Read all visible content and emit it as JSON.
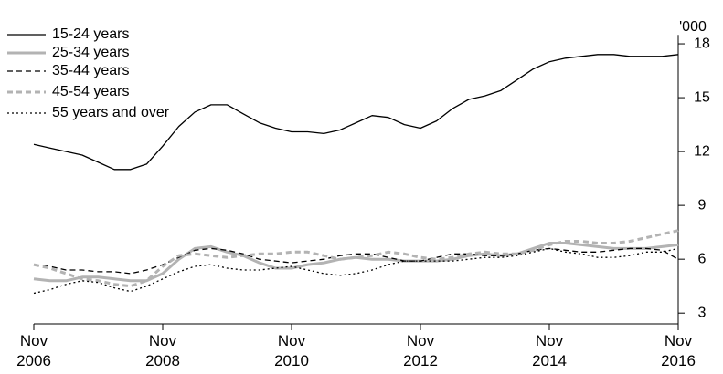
{
  "chart_data": {
    "type": "line",
    "ylabel": "'000",
    "categories": [
      "Nov 2006",
      null,
      null,
      null,
      null,
      null,
      null,
      null,
      "Nov 2008",
      null,
      null,
      null,
      null,
      null,
      null,
      null,
      "Nov 2010",
      null,
      null,
      null,
      null,
      null,
      null,
      null,
      "Nov 2012",
      null,
      null,
      null,
      null,
      null,
      null,
      null,
      "Nov 2014",
      null,
      null,
      null,
      null,
      null,
      null,
      null,
      "Nov 2016"
    ],
    "ylim": [
      2.4,
      18.5
    ],
    "yticks": [
      3,
      6,
      9,
      12,
      15,
      18
    ],
    "series": [
      {
        "name": "15-24 years",
        "color": "#000000",
        "dash": "solid",
        "width": 1.3,
        "values": [
          12.4,
          12.2,
          12.0,
          11.8,
          11.4,
          11.0,
          11.0,
          11.3,
          12.3,
          13.4,
          14.2,
          14.6,
          14.6,
          14.1,
          13.6,
          13.3,
          13.1,
          13.1,
          13.0,
          13.2,
          13.6,
          14.0,
          13.9,
          13.5,
          13.3,
          13.7,
          14.4,
          14.9,
          15.1,
          15.4,
          16.0,
          16.6,
          17.0,
          17.2,
          17.3,
          17.4,
          17.4,
          17.3,
          17.3,
          17.3,
          17.4
        ]
      },
      {
        "name": "25-34 years",
        "color": "#b3b3b3",
        "dash": "solid",
        "width": 3,
        "values": [
          4.9,
          4.8,
          4.8,
          5.0,
          5.0,
          4.9,
          4.8,
          4.8,
          5.2,
          6.0,
          6.6,
          6.7,
          6.4,
          6.2,
          5.8,
          5.5,
          5.5,
          5.7,
          5.8,
          6.0,
          6.1,
          6.0,
          6.0,
          5.9,
          5.9,
          5.9,
          6.0,
          6.2,
          6.3,
          6.2,
          6.3,
          6.6,
          6.9,
          6.9,
          6.8,
          6.7,
          6.6,
          6.6,
          6.6,
          6.7,
          6.8
        ]
      },
      {
        "name": "35-44 years",
        "color": "#000000",
        "dash": "dashed",
        "width": 1.3,
        "values": [
          5.7,
          5.6,
          5.4,
          5.4,
          5.3,
          5.3,
          5.2,
          5.4,
          5.7,
          6.1,
          6.5,
          6.6,
          6.5,
          6.3,
          6.0,
          5.9,
          5.8,
          5.9,
          6.0,
          6.2,
          6.3,
          6.3,
          6.1,
          5.9,
          5.9,
          6.1,
          6.3,
          6.3,
          6.2,
          6.2,
          6.3,
          6.5,
          6.6,
          6.5,
          6.4,
          6.4,
          6.5,
          6.6,
          6.6,
          6.5,
          6.0
        ]
      },
      {
        "name": "45-54 years",
        "color": "#b3b3b3",
        "dash": "dashed",
        "width": 3,
        "values": [
          5.7,
          5.5,
          5.2,
          4.9,
          4.8,
          4.6,
          4.5,
          4.8,
          5.6,
          6.2,
          6.3,
          6.2,
          6.1,
          6.2,
          6.3,
          6.3,
          6.4,
          6.4,
          6.2,
          6.0,
          6.1,
          6.2,
          6.4,
          6.3,
          6.1,
          6.0,
          6.1,
          6.3,
          6.4,
          6.3,
          6.3,
          6.5,
          6.8,
          7.0,
          7.0,
          6.9,
          6.9,
          7.0,
          7.2,
          7.4,
          7.6
        ]
      },
      {
        "name": "55 years and over",
        "color": "#000000",
        "dash": "dotted",
        "width": 1.3,
        "values": [
          4.1,
          4.3,
          4.6,
          4.8,
          4.7,
          4.4,
          4.2,
          4.5,
          4.9,
          5.3,
          5.6,
          5.7,
          5.5,
          5.4,
          5.4,
          5.5,
          5.6,
          5.4,
          5.2,
          5.1,
          5.2,
          5.4,
          5.7,
          5.9,
          5.9,
          5.9,
          5.9,
          6.0,
          6.1,
          6.1,
          6.2,
          6.4,
          6.6,
          6.4,
          6.3,
          6.1,
          6.1,
          6.2,
          6.4,
          6.4,
          6.6
        ]
      }
    ]
  }
}
